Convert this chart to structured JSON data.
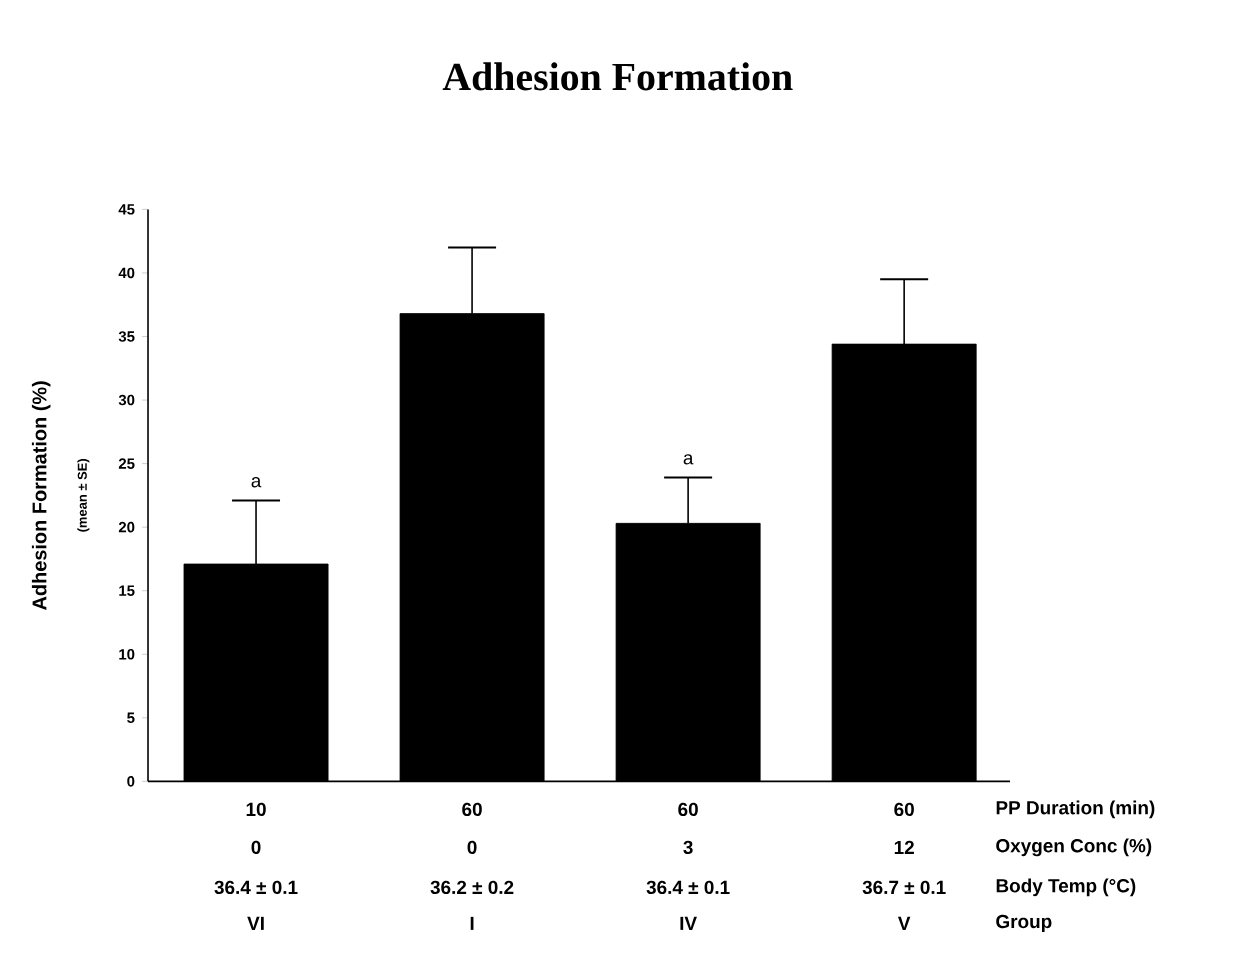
{
  "chart_data": {
    "type": "bar",
    "title": "Adhesion Formation",
    "ylabel": "Adhesion Formation (%)",
    "xlabel": "Group",
    "categories": [
      "VI",
      "I",
      "IV",
      "V"
    ],
    "values": [
      17.1,
      36.8,
      20.3,
      34.4
    ],
    "errors": [
      5.0,
      5.2,
      3.6,
      5.1
    ],
    "color": "#000000",
    "ylim": [
      0,
      45
    ],
    "yticks": [
      0,
      5,
      10,
      15,
      20,
      25,
      30,
      35,
      40,
      45
    ],
    "annotations": [
      "(mean ± SE)",
      "PP Duration (min)",
      "10",
      "60",
      "60",
      "60",
      "Oxygen Conc (%)",
      "0",
      "0",
      "3",
      "12",
      "Body Temp (°C)",
      "36.4 ± 0.1",
      "36.2 ± 0.2",
      "36.4 ± 0.1",
      "36.7 ± 0.1",
      {
        "text": "a",
        "x": "VI",
        "y": 22.1
      },
      {
        "text": "a",
        "x": "IV",
        "y": 23.9
      }
    ]
  }
}
